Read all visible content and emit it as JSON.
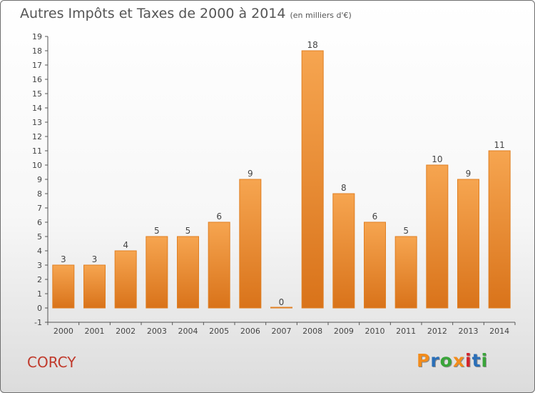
{
  "header": {
    "title": "Autres Impôts et Taxes de 2000 à 2014",
    "unit": "(en milliers d'€)"
  },
  "footer": {
    "commune": "CORCY",
    "logo_text": "Proxiti",
    "logo_colors": [
      "#f28c1c",
      "#2a6fb8",
      "#3aa53a",
      "#f28c1c",
      "#d4232c",
      "#2a6fb8",
      "#3aa53a"
    ]
  },
  "chart_data": {
    "type": "bar",
    "title": "Autres Impôts et Taxes de 2000 à 2014",
    "subtitle": "(en milliers d'€)",
    "xlabel": "",
    "ylabel": "",
    "categories": [
      "2000",
      "2001",
      "2002",
      "2003",
      "2004",
      "2005",
      "2006",
      "2007",
      "2008",
      "2009",
      "2010",
      "2011",
      "2012",
      "2013",
      "2014"
    ],
    "values": [
      3,
      3,
      4,
      5,
      5,
      6,
      9,
      0,
      18,
      8,
      6,
      5,
      10,
      9,
      11
    ],
    "data_labels": [
      "3",
      "3",
      "4",
      "5",
      "5",
      "6",
      "9",
      "0",
      "18",
      "8",
      "6",
      "5",
      "10",
      "9",
      "11"
    ],
    "ylim": [
      -1,
      19
    ],
    "y_ticks": [
      "-1",
      "0",
      "1",
      "2",
      "3",
      "4",
      "5",
      "6",
      "7",
      "8",
      "9",
      "10",
      "11",
      "12",
      "13",
      "14",
      "15",
      "16",
      "17",
      "18",
      "19"
    ],
    "grid": false,
    "legend": "none",
    "colors": {
      "bar_light": "#f6a550",
      "bar_dark": "#d9731a",
      "bar_border": "#e07f22",
      "text": "#444444"
    }
  }
}
